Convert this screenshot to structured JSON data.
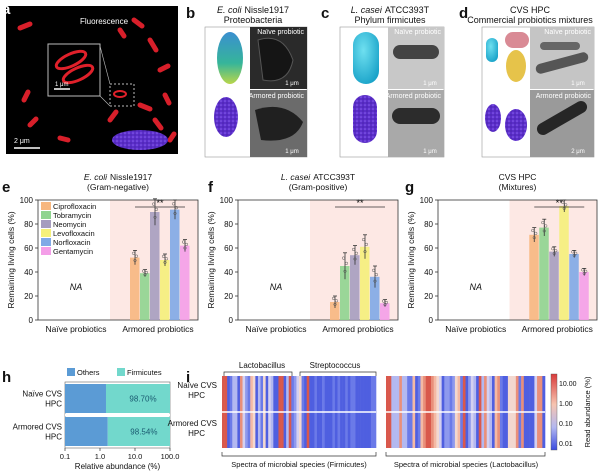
{
  "panel_labels": {
    "a": "a",
    "b": "b",
    "c": "c",
    "d": "d",
    "e": "e",
    "f": "f",
    "g": "g",
    "h": "h",
    "i": "i"
  },
  "panel_a": {
    "fluorescence": "Fluorescence",
    "scale_inset": "1 μm",
    "scale_main": "2 μm"
  },
  "panel_b": {
    "species": "E. coli",
    "strain": "Nissle1917",
    "phylum": "Proteobacteria",
    "naive": "Naïve probiotic",
    "armored": "Armored probiotic",
    "scale1": "1 μm",
    "scale2": "1 μm"
  },
  "panel_c": {
    "species": "L. casei",
    "strain": "ATCC393T",
    "phylum": "Phylum firmicutes",
    "naive": "Naïve probiotic",
    "armored": "Armored probiotic",
    "scale1": "1 μm",
    "scale2": "1 μm"
  },
  "panel_d": {
    "title": "CVS HPC",
    "subtitle": "Commercial probiotics mixtures",
    "naive": "Naïve probiotic",
    "armored": "Armored probiotic",
    "scale1": "1 μm",
    "scale2": "2 μm"
  },
  "colors": {
    "cipro": "#f7b77f",
    "tobra": "#8fd48f",
    "neo": "#a69dbf",
    "levo": "#f5f07a",
    "norflox": "#7fa9e6",
    "genta": "#f49ee8",
    "shade": "#fde8e4"
  },
  "chart_data": [
    {
      "type": "bar",
      "title_species": "E. coli",
      "title_strain": "Nissle1917",
      "subtitle": "(Gram-negative)",
      "ylabel": "Remaining living cells (%)",
      "ylim": [
        0,
        100
      ],
      "yticks": [
        0,
        20,
        40,
        60,
        80,
        100
      ],
      "categories": [
        "Naïve probiotics",
        "Armored probiotics"
      ],
      "naive_label": "NA",
      "legend": [
        "Ciprofloxacin",
        "Tobramycin",
        "Neomycin",
        "Levofloxacin",
        "Norfloxacin",
        "Gentamycin"
      ],
      "series": [
        {
          "name": "Ciprofloxacin",
          "values": [
            null,
            52
          ],
          "err": 6
        },
        {
          "name": "Tobramycin",
          "values": [
            null,
            39
          ],
          "err": 3
        },
        {
          "name": "Neomycin",
          "values": [
            null,
            90
          ],
          "err": 11
        },
        {
          "name": "Levofloxacin",
          "values": [
            null,
            50
          ],
          "err": 5
        },
        {
          "name": "Norfloxacin",
          "values": [
            null,
            92
          ],
          "err": 8
        },
        {
          "name": "Gentamycin",
          "values": [
            null,
            62
          ],
          "err": 5
        }
      ],
      "significance": "**"
    },
    {
      "type": "bar",
      "title_species": "L. casei",
      "title_strain": "ATCC393T",
      "subtitle": "(Gram-positive)",
      "ylabel": "Remaining living cells (%)",
      "ylim": [
        0,
        100
      ],
      "yticks": [
        0,
        20,
        40,
        60,
        80,
        100
      ],
      "categories": [
        "Naïve probiotics",
        "Armored probiotics"
      ],
      "naive_label": "NA",
      "series": [
        {
          "name": "Ciprofloxacin",
          "values": [
            null,
            15
          ],
          "err": 5
        },
        {
          "name": "Tobramycin",
          "values": [
            null,
            45
          ],
          "err": 11
        },
        {
          "name": "Neomycin",
          "values": [
            null,
            54
          ],
          "err": 8
        },
        {
          "name": "Levofloxacin",
          "values": [
            null,
            61
          ],
          "err": 10
        },
        {
          "name": "Norfloxacin",
          "values": [
            null,
            36
          ],
          "err": 9
        },
        {
          "name": "Gentamycin",
          "values": [
            null,
            14
          ],
          "err": 3
        }
      ],
      "significance": "**"
    },
    {
      "type": "bar",
      "title_species": "CVS HPC",
      "title_strain": "",
      "subtitle": "(Mixtures)",
      "ylabel": "Remaining living cells (%)",
      "ylim": [
        0,
        100
      ],
      "yticks": [
        0,
        20,
        40,
        60,
        80,
        100
      ],
      "categories": [
        "Naïve probiotics",
        "Armored probiotics"
      ],
      "naive_label": "NA",
      "series": [
        {
          "name": "Ciprofloxacin",
          "values": [
            null,
            71
          ],
          "err": 6
        },
        {
          "name": "Tobramycin",
          "values": [
            null,
            77
          ],
          "err": 7
        },
        {
          "name": "Neomycin",
          "values": [
            null,
            57
          ],
          "err": 4
        },
        {
          "name": "Levofloxacin",
          "values": [
            null,
            95
          ],
          "err": 5
        },
        {
          "name": "Norfloxacin",
          "values": [
            null,
            55
          ],
          "err": 3
        },
        {
          "name": "Gentamycin",
          "values": [
            null,
            40
          ],
          "err": 3
        }
      ],
      "significance": "**"
    },
    {
      "type": "bar",
      "stacked": true,
      "orientation": "horizontal",
      "xlabel": "Relative abundance (%)",
      "xscale": "log",
      "xticks": [
        "0.1",
        "1.0",
        "10.0",
        "100.0"
      ],
      "legend": [
        "Others",
        "Firmicutes"
      ],
      "legend_colors": [
        "#5b9bd5",
        "#72d8cc"
      ],
      "categories": [
        "Naïve CVS HPC",
        "Armored CVS HPC"
      ],
      "cat_lines": [
        [
          "Naïve CVS",
          "HPC"
        ],
        [
          "Armored CVS",
          "HPC"
        ]
      ],
      "firmicutes_labels": [
        "98.70%",
        "98.54%"
      ],
      "firmicutes_values": [
        98.7,
        98.54
      ]
    },
    {
      "type": "heatmap",
      "colorbar_label": "Read abundance (%)",
      "colorbar_ticks": [
        "10.00",
        "1.00",
        "0.10",
        "0.01"
      ],
      "row_labels": [
        [
          "Naïve CVS",
          "HPC"
        ],
        [
          "Armored CVS",
          "HPC"
        ]
      ],
      "left_brackets": [
        "Lactobacillus",
        "Streptococcus"
      ],
      "xlabel_left": "Spectra of microbial species (Firmicutes)",
      "xlabel_right": "Spectra of microbial species (Lactobacillus)"
    }
  ]
}
